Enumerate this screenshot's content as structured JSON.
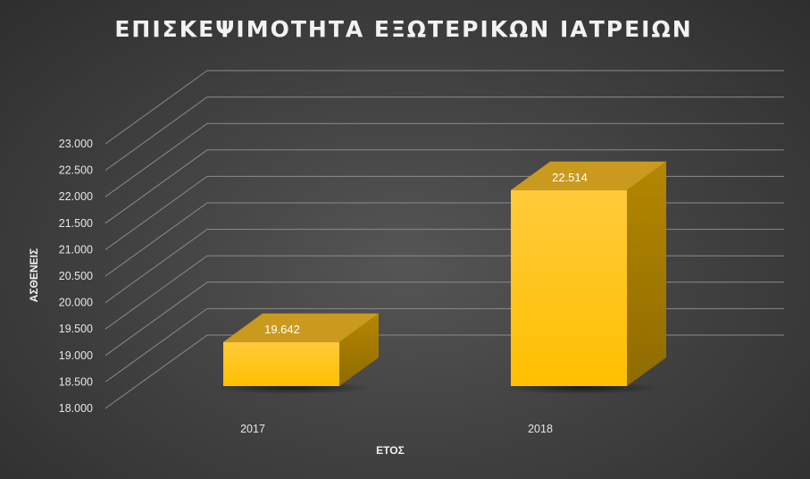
{
  "chart_data": {
    "type": "bar",
    "title": "ΕΠΙΣΚΕΨΙΜΟΤΗΤΑ ΕΞΩΤΕΡΙΚΩΝ ΙΑΤΡΕΙΩΝ",
    "xlabel": "ΕΤΟΣ",
    "ylabel": "ΑΣΘΕΝΕΙΣ",
    "categories": [
      "2017",
      "2018"
    ],
    "values": [
      19642,
      22514
    ],
    "data_labels": [
      "19.642",
      "22.514"
    ],
    "ylim": [
      18000,
      23000
    ],
    "yticks": [
      "18.000",
      "18.500",
      "19.000",
      "19.500",
      "20.000",
      "20.500",
      "21.000",
      "21.500",
      "22.000",
      "22.500",
      "23.000"
    ],
    "ytick_values": [
      18000,
      18500,
      19000,
      19500,
      20000,
      20500,
      21000,
      21500,
      22000,
      22500,
      23000
    ],
    "grid": true,
    "style": "3d-column",
    "colors": {
      "bar_front": "#ffc000",
      "bar_side": "#a37a00",
      "bar_top": "#c99a1e",
      "gridline": "#8a8a8a",
      "background": "#404040"
    }
  }
}
